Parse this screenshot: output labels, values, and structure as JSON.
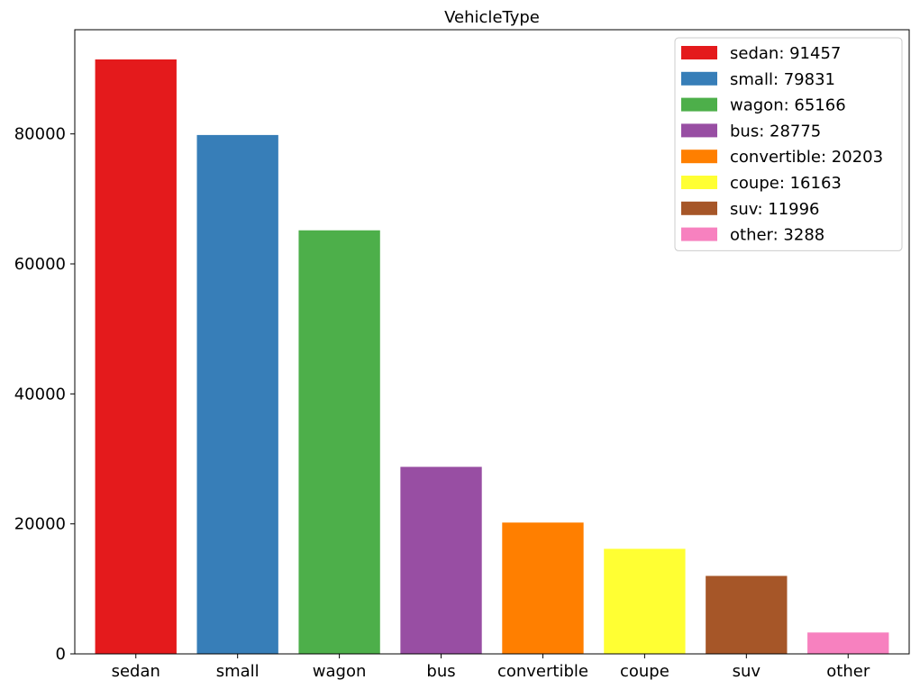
{
  "chart_data": {
    "type": "bar",
    "title": "VehicleType",
    "xlabel": "",
    "ylabel": "",
    "categories": [
      "sedan",
      "small",
      "wagon",
      "bus",
      "convertible",
      "coupe",
      "suv",
      "other"
    ],
    "values": [
      91457,
      79831,
      65166,
      28775,
      20203,
      16163,
      11996,
      3288
    ],
    "colors": [
      "#e41a1c",
      "#377eb8",
      "#4daf4a",
      "#984ea3",
      "#ff7f00",
      "#ffff33",
      "#a65628",
      "#f781bf"
    ],
    "ylim": [
      0,
      96030
    ],
    "yticks": [
      0,
      20000,
      40000,
      60000,
      80000
    ],
    "grid": false,
    "legend": {
      "position": "top-right",
      "entries": [
        "sedan: 91457",
        "small: 79831",
        "wagon: 65166",
        "bus: 28775",
        "convertible: 20203",
        "coupe: 16163",
        "suv: 11996",
        "other: 3288"
      ]
    }
  }
}
